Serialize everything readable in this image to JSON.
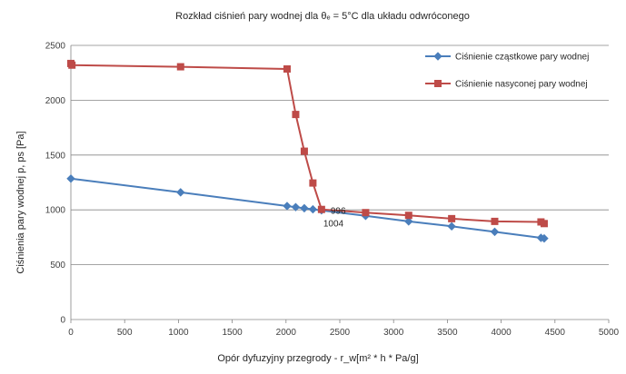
{
  "chart_data": {
    "type": "line",
    "title": "Rozkład ciśnień pary wodnej dla θₑ = 5°C dla układu odwróconego",
    "xlabel": "Opór dyfuzyjny przegrody - r_w[m² * h * Pa/g]",
    "ylabel": "Ciśnienia pary wodnej p, ps [Pa]",
    "xlim": [
      0,
      5000
    ],
    "ylim": [
      0,
      2500
    ],
    "xticks": [
      "0",
      "500",
      "1000",
      "1500",
      "2000",
      "2500",
      "3000",
      "3500",
      "4000",
      "4500",
      "5000"
    ],
    "yticks": [
      "0",
      "500",
      "1000",
      "1500",
      "2000",
      "2500"
    ],
    "grid": "horizontal",
    "legend_position": "top-right",
    "series": [
      {
        "name": "Ciśnienie cząstkowe pary wodnej",
        "color": "#4a7ebb",
        "marker": "diamond",
        "x": [
          0,
          1020,
          2010,
          2090,
          2170,
          2250,
          2330,
          2740,
          3140,
          3540,
          3940,
          4370,
          4400
        ],
        "y": [
          1285,
          1160,
          1035,
          1025,
          1015,
          1005,
          996,
          945,
          895,
          850,
          800,
          745,
          740
        ]
      },
      {
        "name": "Ciśnienie nasyconej pary wodnej",
        "color": "#be4b48",
        "marker": "square",
        "x": [
          0,
          10,
          1020,
          2010,
          2090,
          2170,
          2250,
          2330,
          2740,
          3140,
          3540,
          3940,
          4370,
          4400
        ],
        "y": [
          2335,
          2320,
          2305,
          2285,
          1870,
          1535,
          1245,
          1004,
          975,
          950,
          920,
          895,
          890,
          875
        ]
      }
    ],
    "annotations": [
      {
        "text": "996",
        "x": 2330,
        "y": 996
      },
      {
        "text": "1004",
        "x": 2330,
        "y": 1004
      }
    ]
  }
}
